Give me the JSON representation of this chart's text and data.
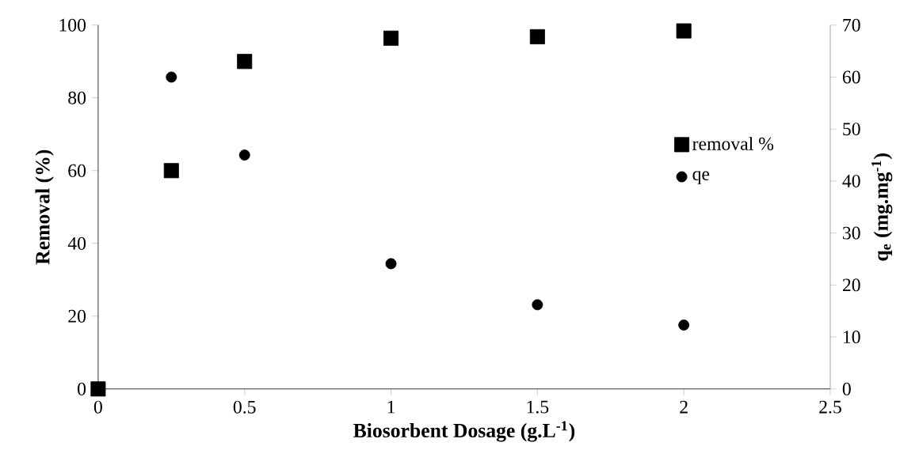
{
  "chart_data": {
    "type": "scatter",
    "xlabel": "Biosorbent Dosage (g.L$^{-1}$)",
    "ylabel": "Removal (%)",
    "y2label": "q$_{e}$ (mg.mg$^{-1}$)",
    "x": [
      0,
      0.25,
      0.5,
      1,
      1.5,
      2
    ],
    "series": [
      {
        "name": "removal %",
        "color": "#000000",
        "marker": "square",
        "values": [
          0,
          60,
          90,
          96.4,
          96.8,
          98.4
        ]
      },
      {
        "name": "qe",
        "color": "#000000",
        "marker": "circle",
        "axis": "y2",
        "x": [
          0.25,
          0.5,
          1,
          1.5,
          2
        ],
        "values": [
          60,
          45,
          24.1,
          16.2,
          12.3
        ]
      }
    ],
    "xlim": [
      0,
      2.5
    ],
    "xticks": [
      0,
      0.5,
      1,
      1.5,
      2,
      2.5
    ],
    "ylim": [
      0,
      100
    ],
    "yticks": [
      0,
      20,
      40,
      60,
      80,
      100
    ],
    "y2lim": [
      0,
      70
    ],
    "y2ticks": [
      0,
      10,
      20,
      30,
      40,
      50,
      60,
      70
    ],
    "grid": false,
    "legend": "right"
  }
}
